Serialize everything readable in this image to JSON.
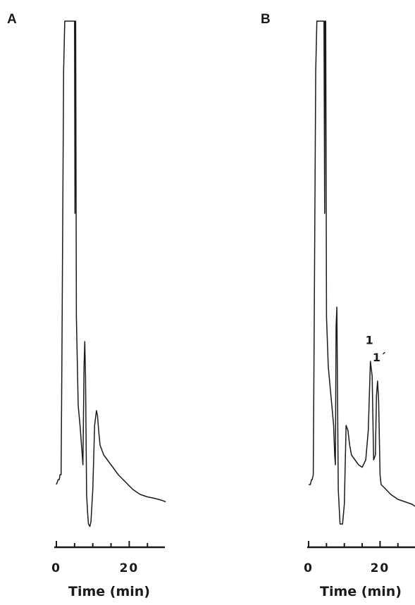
{
  "chart_data": [
    {
      "type": "line",
      "panel": "A",
      "xlabel": "Time (min)",
      "ylabel": "",
      "xlim": [
        0,
        30
      ],
      "ylim": [
        0,
        100
      ],
      "x_ticks": [
        0,
        20
      ],
      "x_tick_labels": [
        "0",
        "20"
      ],
      "grid": false,
      "series": [
        {
          "x": [
            0,
            0.5,
            0.8,
            1.0,
            1.3,
            1.5,
            2.0,
            2.3,
            2.5,
            3.5,
            4.5,
            4.8,
            5.0,
            5.1,
            5.2,
            5.3,
            5.5,
            6.0,
            6.5,
            7.0,
            7.3,
            7.6,
            7.8,
            8.0,
            8.3,
            8.6,
            8.8,
            9.2,
            9.5,
            10.0,
            10.5,
            11.0,
            11.3,
            11.6,
            12.0,
            13.0,
            15.0,
            17.0,
            19.0,
            21.0,
            23.0,
            25.0,
            27.0,
            29.0,
            30.0
          ],
          "y": [
            6,
            7,
            7,
            8,
            8,
            30,
            90,
            100,
            100,
            100,
            100,
            100,
            100,
            61,
            100,
            100,
            40,
            22,
            18,
            13,
            10,
            30,
            35,
            28,
            4,
            0,
            -2,
            -2.5,
            -1.5,
            5,
            18,
            21,
            20,
            17,
            14,
            12,
            10,
            8,
            6.5,
            5,
            4,
            3.5,
            3.2,
            2.8,
            2.5
          ]
        }
      ]
    },
    {
      "type": "line",
      "panel": "B",
      "xlabel": "Time (min)",
      "ylabel": "",
      "xlim": [
        0,
        30
      ],
      "ylim": [
        0,
        100
      ],
      "x_ticks": [
        0,
        20
      ],
      "x_tick_labels": [
        "0",
        "20"
      ],
      "grid": false,
      "annotations": [
        {
          "text": "1",
          "x": 17.0,
          "y": 34.5
        },
        {
          "text": "1´",
          "x": 19.8,
          "y": 31.0
        }
      ],
      "series": [
        {
          "x": [
            0,
            0.5,
            0.8,
            1.0,
            1.3,
            1.5,
            2.0,
            2.3,
            2.5,
            3.5,
            4.0,
            4.3,
            4.5,
            4.6,
            4.8,
            5.0,
            5.5,
            6.0,
            6.5,
            7.0,
            7.3,
            7.5,
            7.7,
            7.9,
            8.3,
            8.8,
            9.5,
            10.0,
            10.5,
            11.0,
            11.5,
            12.0,
            13.0,
            14.0,
            15.0,
            16.0,
            16.7,
            17.3,
            17.8,
            18.2,
            18.7,
            19.0,
            19.3,
            19.6,
            20.0,
            20.3,
            21.0,
            23.0,
            25.0,
            27.0,
            29.0,
            30.0
          ],
          "y": [
            6,
            6,
            7,
            7,
            8,
            30,
            90,
            100,
            100,
            100,
            100,
            100,
            61,
            100,
            100,
            40,
            30,
            26,
            22,
            18,
            12,
            10,
            38,
            42,
            5,
            -2,
            -2,
            2,
            18,
            17,
            14,
            12,
            11,
            10,
            9.5,
            11,
            17,
            31,
            28,
            11,
            12,
            24,
            27,
            23,
            8,
            6,
            5.5,
            4,
            3,
            2.5,
            2,
            1.5
          ]
        }
      ]
    }
  ]
}
